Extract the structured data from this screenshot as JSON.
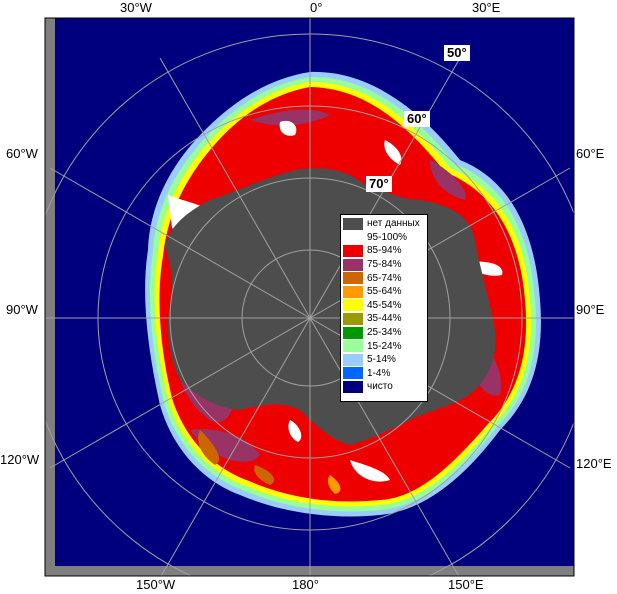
{
  "map": {
    "projection": "polar-stereographic-south",
    "colors": {
      "ocean": "#00007f",
      "no_data": "#4d4d4d",
      "frame_bg": "#7f7f7f",
      "graticule": "#a0a0a0"
    }
  },
  "longitude_labels": {
    "top_30w": "30°W",
    "top_0": "0°",
    "top_30e": "30°E",
    "left_60w": "60°W",
    "left_90w": "90°W",
    "left_120w": "120°W",
    "right_60e": "60°E",
    "right_90e": "90°E",
    "right_120e": "120°E",
    "bottom_150w": "150°W",
    "bottom_180": "180°",
    "bottom_150e": "150°E"
  },
  "latitude_labels": {
    "lat_50": "50°",
    "lat_60": "60°",
    "lat_70": "70°"
  },
  "legend": {
    "items": [
      {
        "label": "нет данных",
        "color": "#4d4d4d"
      },
      {
        "label": "95-100%",
        "color": "#ffffff"
      },
      {
        "label": "85-94%",
        "color": "#ee0000"
      },
      {
        "label": "75-84%",
        "color": "#993366"
      },
      {
        "label": "65-74%",
        "color": "#cc6600"
      },
      {
        "label": "55-64%",
        "color": "#ff9900"
      },
      {
        "label": "45-54%",
        "color": "#ffff00"
      },
      {
        "label": "35-44%",
        "color": "#999900"
      },
      {
        "label": "25-34%",
        "color": "#009900"
      },
      {
        "label": "15-24%",
        "color": "#99ff99"
      },
      {
        "label": "5-14%",
        "color": "#99ccff"
      },
      {
        "label": "1-4%",
        "color": "#0066ff"
      },
      {
        "label": "чисто",
        "color": "#00007f"
      }
    ]
  }
}
